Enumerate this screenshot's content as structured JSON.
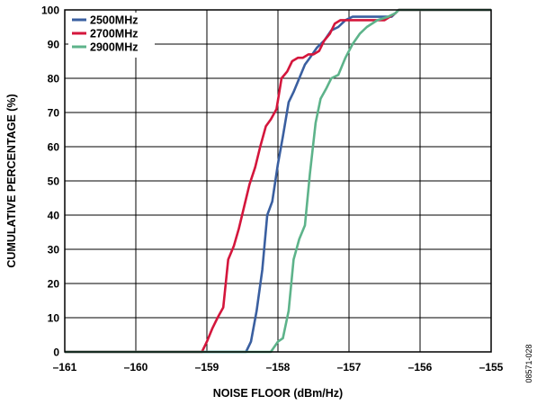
{
  "figure_id": "08571-028",
  "chart_data": {
    "type": "line",
    "xlabel": "NOISE FLOOR (dBm/Hz)",
    "ylabel": "CUMULATIVE PERCENTAGE (%)",
    "xlim": [
      -161,
      -155
    ],
    "ylim": [
      0,
      100
    ],
    "x_ticks": [
      -161,
      -160,
      -159,
      -158,
      -157,
      -156,
      -155
    ],
    "x_tick_labels": [
      "–161",
      "–160",
      "–159",
      "–158",
      "–157",
      "–156",
      "–155"
    ],
    "y_ticks": [
      0,
      10,
      20,
      30,
      40,
      50,
      60,
      70,
      80,
      90,
      100
    ],
    "y_tick_labels": [
      "0",
      "10",
      "20",
      "30",
      "40",
      "50",
      "60",
      "70",
      "80",
      "90",
      "100"
    ],
    "grid": true,
    "legend_position": "top-left",
    "series": [
      {
        "name": "2500MHz",
        "color": "#3a5fa0",
        "x": [
          -161,
          -158.45,
          -158.38,
          -158.3,
          -158.22,
          -158.15,
          -158.08,
          -158.0,
          -157.93,
          -157.85,
          -157.78,
          -157.7,
          -157.62,
          -157.55,
          -157.45,
          -157.35,
          -157.25,
          -157.15,
          -157.05,
          -156.95,
          -156.8,
          -156.6,
          -156.4,
          -156.3,
          -155.0
        ],
        "y": [
          0,
          0,
          3,
          12,
          24,
          40,
          44,
          55,
          63,
          73,
          76,
          80,
          84,
          86,
          89,
          91,
          94,
          95,
          97,
          98,
          98,
          98,
          98,
          100,
          100
        ]
      },
      {
        "name": "2700MHz",
        "color": "#d4163c",
        "x": [
          -161,
          -159.07,
          -159.0,
          -158.92,
          -158.85,
          -158.77,
          -158.7,
          -158.62,
          -158.55,
          -158.47,
          -158.4,
          -158.32,
          -158.25,
          -158.17,
          -158.1,
          -158.02,
          -157.95,
          -157.87,
          -157.8,
          -157.72,
          -157.65,
          -157.57,
          -157.5,
          -157.42,
          -157.35,
          -157.27,
          -157.2,
          -157.12,
          -157.05,
          -156.9,
          -156.7,
          -156.5,
          -156.35,
          -156.3,
          -155.0
        ],
        "y": [
          0,
          0,
          3,
          7,
          10,
          13,
          27,
          31,
          36,
          43,
          49,
          54,
          60,
          66,
          68,
          71,
          80,
          82,
          85,
          86,
          86,
          87,
          87,
          88,
          91,
          93,
          96,
          97,
          97,
          97,
          97,
          97,
          99,
          100,
          100
        ]
      },
      {
        "name": "2900MHz",
        "color": "#5db38a",
        "x": [
          -161,
          -158.1,
          -158.0,
          -157.93,
          -157.85,
          -157.78,
          -157.7,
          -157.62,
          -157.55,
          -157.47,
          -157.4,
          -157.32,
          -157.25,
          -157.15,
          -157.05,
          -156.95,
          -156.85,
          -156.75,
          -156.6,
          -156.45,
          -156.35,
          -156.3,
          -155.0
        ],
        "y": [
          0,
          0,
          3,
          4,
          12,
          27,
          33,
          37,
          52,
          67,
          74,
          77,
          80,
          81,
          86,
          90,
          93,
          95,
          97,
          98,
          99,
          100,
          100
        ]
      }
    ]
  }
}
